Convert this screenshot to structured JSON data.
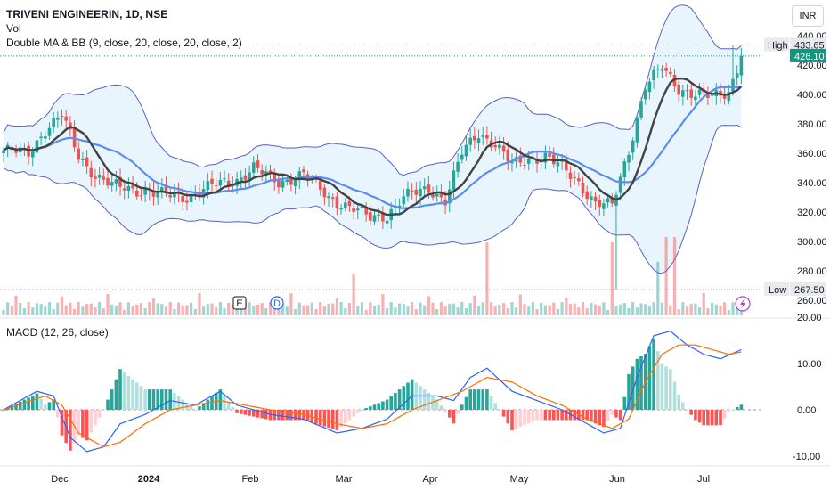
{
  "header": {
    "title": "TRIVENI ENGINEERIN, 1D, NSE",
    "vol_label": "Vol",
    "indicator_label": "Double MA & BB (9, close, 20, close, 20, close, 2)",
    "macd_label": "MACD (12, 26, close)",
    "currency": "INR"
  },
  "price_axis": {
    "ticks": [
      "440.00",
      "420.00",
      "400.00",
      "380.00",
      "360.00",
      "340.00",
      "320.00",
      "300.00",
      "280.00",
      "260.00"
    ],
    "high_label": "High",
    "high_value": "433.65",
    "low_label": "Low",
    "low_value": "267.50",
    "last_value": "426.10"
  },
  "macd_axis": {
    "ticks": [
      "20.00",
      "10.00",
      "0.00",
      "-10.00"
    ]
  },
  "time_axis": {
    "labels": [
      "Dec",
      "2024",
      "Feb",
      "Mar",
      "Apr",
      "May",
      "Jun",
      "Jul"
    ]
  },
  "markers": {
    "earnings": "E",
    "dividend": "D"
  },
  "colors": {
    "up": "#26a69a",
    "down": "#ef5350",
    "bb_line": "#5b5fc7",
    "bb_fill": "#e3f2fd",
    "ma9": "#424242",
    "ma20": "#5b8def",
    "macd_line": "#2962ff",
    "signal_line": "#ff6d00",
    "last_price_bg": "#089981"
  },
  "chart_data": {
    "type": "candlestick",
    "title": "TRIVENI ENGINEERIN, 1D, NSE",
    "ylim": [
      260,
      440
    ],
    "high": 433.65,
    "low": 267.5,
    "last": 426.1,
    "x_labels": [
      "Dec",
      "2024",
      "Feb",
      "Mar",
      "Apr",
      "May",
      "Jun",
      "Jul"
    ],
    "close_anchors": [
      [
        0,
        362
      ],
      [
        6,
        360
      ],
      [
        10,
        376
      ],
      [
        14,
        386
      ],
      [
        18,
        358
      ],
      [
        22,
        345
      ],
      [
        26,
        338
      ],
      [
        32,
        335
      ],
      [
        38,
        332
      ],
      [
        44,
        330
      ],
      [
        50,
        338
      ],
      [
        56,
        342
      ],
      [
        60,
        350
      ],
      [
        66,
        340
      ],
      [
        72,
        346
      ],
      [
        78,
        330
      ],
      [
        84,
        322
      ],
      [
        88,
        316
      ],
      [
        92,
        318
      ],
      [
        96,
        330
      ],
      [
        102,
        336
      ],
      [
        106,
        328
      ],
      [
        110,
        360
      ],
      [
        114,
        374
      ],
      [
        118,
        366
      ],
      [
        122,
        352
      ],
      [
        126,
        356
      ],
      [
        130,
        358
      ],
      [
        134,
        350
      ],
      [
        138,
        340
      ],
      [
        142,
        326
      ],
      [
        146,
        324
      ],
      [
        150,
        362
      ],
      [
        154,
        406
      ],
      [
        158,
        418
      ],
      [
        162,
        404
      ],
      [
        166,
        400
      ],
      [
        170,
        398
      ],
      [
        174,
        402
      ],
      [
        177,
        426.1
      ]
    ],
    "macd_ylim": [
      -11,
      22
    ],
    "macd_ticks": [
      20,
      10,
      0,
      -10
    ],
    "series": [
      {
        "name": "MACD",
        "anchors": [
          [
            0,
            0
          ],
          [
            8,
            4
          ],
          [
            12,
            3
          ],
          [
            16,
            -6
          ],
          [
            20,
            -9
          ],
          [
            24,
            -8
          ],
          [
            28,
            -3
          ],
          [
            34,
            -1
          ],
          [
            40,
            2
          ],
          [
            46,
            1
          ],
          [
            52,
            4
          ],
          [
            56,
            1
          ],
          [
            60,
            0
          ],
          [
            64,
            -1
          ],
          [
            72,
            -2
          ],
          [
            80,
            -5
          ],
          [
            86,
            -4
          ],
          [
            92,
            -2
          ],
          [
            98,
            3
          ],
          [
            104,
            3
          ],
          [
            108,
            2
          ],
          [
            112,
            7
          ],
          [
            116,
            9
          ],
          [
            122,
            4
          ],
          [
            128,
            2
          ],
          [
            134,
            0
          ],
          [
            140,
            -3
          ],
          [
            144,
            -5
          ],
          [
            148,
            -4
          ],
          [
            152,
            7
          ],
          [
            156,
            16
          ],
          [
            160,
            17
          ],
          [
            164,
            14
          ],
          [
            168,
            12
          ],
          [
            172,
            11
          ],
          [
            177,
            13
          ]
        ]
      },
      {
        "name": "Signal",
        "anchors": [
          [
            0,
            0
          ],
          [
            10,
            3
          ],
          [
            14,
            1
          ],
          [
            18,
            -5
          ],
          [
            24,
            -8
          ],
          [
            28,
            -7
          ],
          [
            34,
            -3
          ],
          [
            40,
            0
          ],
          [
            46,
            1
          ],
          [
            52,
            2
          ],
          [
            58,
            1
          ],
          [
            64,
            0
          ],
          [
            72,
            -1
          ],
          [
            80,
            -3
          ],
          [
            86,
            -4
          ],
          [
            92,
            -3
          ],
          [
            98,
            0
          ],
          [
            104,
            2
          ],
          [
            110,
            4
          ],
          [
            116,
            7
          ],
          [
            122,
            6
          ],
          [
            128,
            3
          ],
          [
            134,
            1
          ],
          [
            140,
            -2
          ],
          [
            146,
            -4
          ],
          [
            150,
            -2
          ],
          [
            154,
            6
          ],
          [
            158,
            12
          ],
          [
            162,
            14
          ],
          [
            166,
            14
          ],
          [
            170,
            13
          ],
          [
            174,
            12
          ],
          [
            177,
            12.5
          ]
        ]
      }
    ]
  }
}
